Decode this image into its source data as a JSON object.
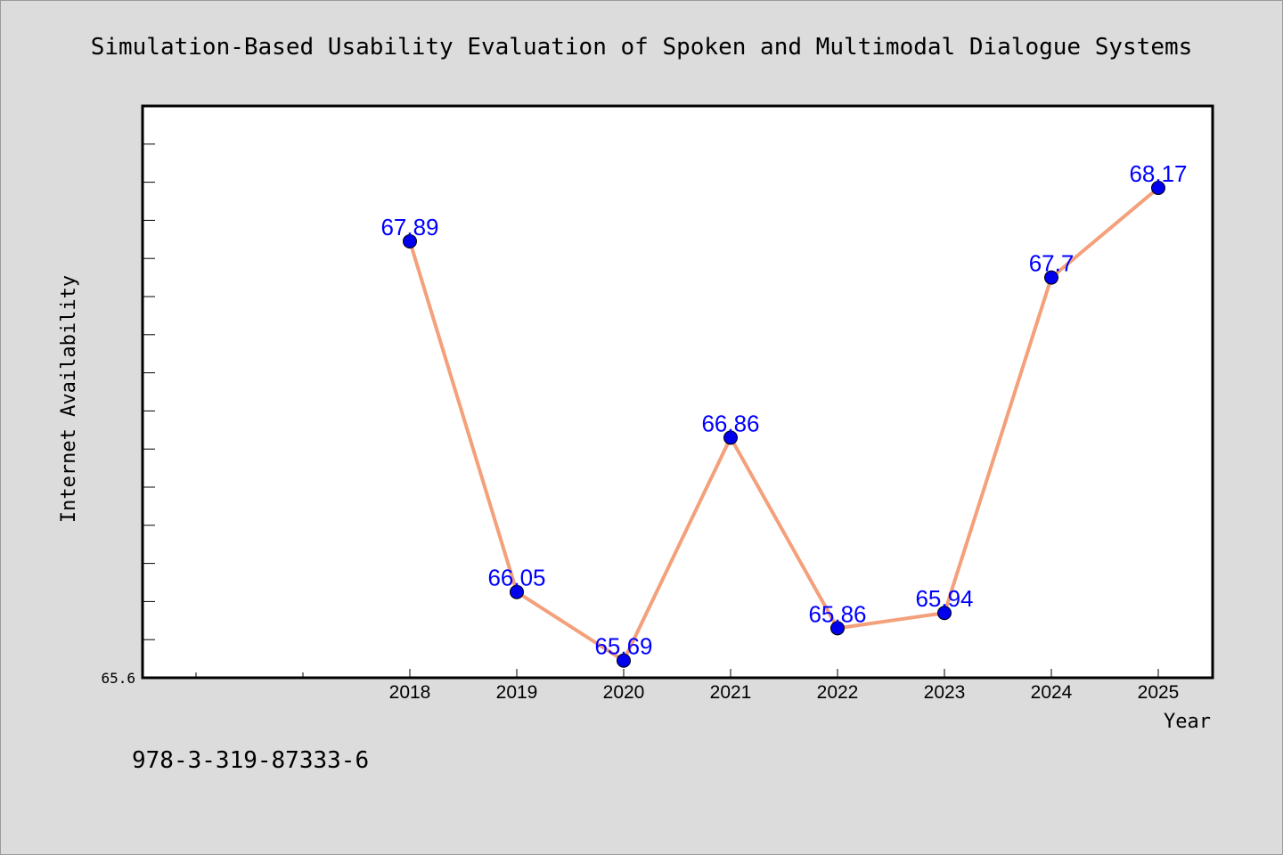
{
  "chart_data": {
    "type": "line",
    "title": "Simulation-Based Usability Evaluation of Spoken and Multimodal Dialogue Systems",
    "xlabel": "Year",
    "ylabel": "Internet Availability",
    "categories": [
      "2018",
      "2019",
      "2020",
      "2021",
      "2022",
      "2023",
      "2024",
      "2025"
    ],
    "series": [
      {
        "values": [
          67.89,
          66.05,
          65.69,
          66.86,
          65.86,
          65.94,
          67.7,
          68.17
        ],
        "color": "#f4a07a",
        "marker_color": "#0000ee"
      }
    ],
    "data_labels": [
      "67.89",
      "66.05",
      "65.69",
      "66.86",
      "65.86",
      "65.94",
      "67.7",
      "68.17"
    ],
    "ylim": [
      65.6,
      68.6
    ],
    "ytick_labels": [
      "65.6"
    ],
    "grid": false,
    "legend": "none"
  },
  "footer": {
    "identifier": "978-3-319-87333-6"
  },
  "colors": {
    "background": "#dcdcdc",
    "plot_background": "#ffffff",
    "data_label": "#0000ff"
  }
}
